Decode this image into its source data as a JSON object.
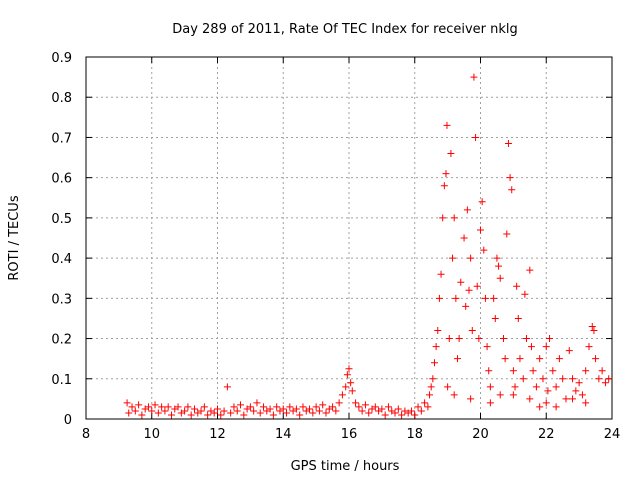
{
  "chart_data": {
    "type": "scatter",
    "title": "Day 289 of 2011, Rate Of TEC Index for receiver nklg",
    "xlabel": "GPS time / hours",
    "ylabel": "ROTI / TECUs",
    "xlim": [
      8,
      24
    ],
    "ylim": [
      0,
      0.9
    ],
    "xticks": [
      8,
      10,
      12,
      14,
      16,
      18,
      20,
      22,
      24
    ],
    "xtick_labels": [
      "8",
      "10",
      "12",
      "14",
      "16",
      "18",
      "20",
      "22",
      "24"
    ],
    "yticks": [
      0,
      0.1,
      0.2,
      0.3,
      0.4,
      0.5,
      0.6,
      0.7,
      0.8,
      0.9
    ],
    "ytick_labels": [
      "0",
      "0.1",
      "0.2",
      "0.3",
      "0.4",
      "0.5",
      "0.6",
      "0.7",
      "0.8",
      "0.9"
    ],
    "grid": true,
    "marker": "+",
    "color": "#ff0000",
    "series": [
      {
        "name": "ROTI",
        "points": [
          [
            9.25,
            0.04
          ],
          [
            9.3,
            0.015
          ],
          [
            9.4,
            0.03
          ],
          [
            9.5,
            0.02
          ],
          [
            9.6,
            0.035
          ],
          [
            9.7,
            0.01
          ],
          [
            9.8,
            0.025
          ],
          [
            9.9,
            0.03
          ],
          [
            10.0,
            0.02
          ],
          [
            10.1,
            0.035
          ],
          [
            10.2,
            0.015
          ],
          [
            10.3,
            0.03
          ],
          [
            10.4,
            0.02
          ],
          [
            10.5,
            0.03
          ],
          [
            10.6,
            0.01
          ],
          [
            10.7,
            0.025
          ],
          [
            10.8,
            0.03
          ],
          [
            10.9,
            0.015
          ],
          [
            11.0,
            0.02
          ],
          [
            11.1,
            0.03
          ],
          [
            11.2,
            0.01
          ],
          [
            11.3,
            0.025
          ],
          [
            11.4,
            0.015
          ],
          [
            11.5,
            0.02
          ],
          [
            11.6,
            0.03
          ],
          [
            11.7,
            0.01
          ],
          [
            11.8,
            0.02
          ],
          [
            11.9,
            0.015
          ],
          [
            12.0,
            0.025
          ],
          [
            12.1,
            0.01
          ],
          [
            12.2,
            0.02
          ],
          [
            12.3,
            0.08
          ],
          [
            12.4,
            0.015
          ],
          [
            12.5,
            0.03
          ],
          [
            12.6,
            0.02
          ],
          [
            12.7,
            0.035
          ],
          [
            12.8,
            0.01
          ],
          [
            12.9,
            0.025
          ],
          [
            13.0,
            0.03
          ],
          [
            13.1,
            0.02
          ],
          [
            13.2,
            0.04
          ],
          [
            13.3,
            0.015
          ],
          [
            13.4,
            0.03
          ],
          [
            13.5,
            0.02
          ],
          [
            13.6,
            0.025
          ],
          [
            13.7,
            0.01
          ],
          [
            13.8,
            0.03
          ],
          [
            13.9,
            0.02
          ],
          [
            14.0,
            0.025
          ],
          [
            14.1,
            0.015
          ],
          [
            14.2,
            0.03
          ],
          [
            14.3,
            0.02
          ],
          [
            14.4,
            0.025
          ],
          [
            14.5,
            0.01
          ],
          [
            14.6,
            0.03
          ],
          [
            14.7,
            0.02
          ],
          [
            14.8,
            0.025
          ],
          [
            14.9,
            0.015
          ],
          [
            15.0,
            0.03
          ],
          [
            15.1,
            0.02
          ],
          [
            15.2,
            0.035
          ],
          [
            15.3,
            0.015
          ],
          [
            15.4,
            0.025
          ],
          [
            15.5,
            0.03
          ],
          [
            15.6,
            0.02
          ],
          [
            15.7,
            0.04
          ],
          [
            15.8,
            0.06
          ],
          [
            15.9,
            0.08
          ],
          [
            15.95,
            0.11
          ],
          [
            16.0,
            0.125
          ],
          [
            16.05,
            0.09
          ],
          [
            16.1,
            0.07
          ],
          [
            16.2,
            0.04
          ],
          [
            16.3,
            0.03
          ],
          [
            16.4,
            0.02
          ],
          [
            16.5,
            0.035
          ],
          [
            16.6,
            0.015
          ],
          [
            16.7,
            0.025
          ],
          [
            16.8,
            0.03
          ],
          [
            16.9,
            0.02
          ],
          [
            17.0,
            0.025
          ],
          [
            17.1,
            0.01
          ],
          [
            17.2,
            0.03
          ],
          [
            17.3,
            0.02
          ],
          [
            17.4,
            0.015
          ],
          [
            17.5,
            0.025
          ],
          [
            17.6,
            0.01
          ],
          [
            17.7,
            0.02
          ],
          [
            17.8,
            0.015
          ],
          [
            17.9,
            0.02
          ],
          [
            18.0,
            0.01
          ],
          [
            18.1,
            0.03
          ],
          [
            18.2,
            0.02
          ],
          [
            18.3,
            0.04
          ],
          [
            18.4,
            0.03
          ],
          [
            18.45,
            0.06
          ],
          [
            18.5,
            0.08
          ],
          [
            18.55,
            0.1
          ],
          [
            18.6,
            0.14
          ],
          [
            18.65,
            0.18
          ],
          [
            18.7,
            0.22
          ],
          [
            18.75,
            0.3
          ],
          [
            18.8,
            0.36
          ],
          [
            18.85,
            0.5
          ],
          [
            18.9,
            0.58
          ],
          [
            18.95,
            0.61
          ],
          [
            18.98,
            0.73
          ],
          [
            19.05,
            0.2
          ],
          [
            19.1,
            0.66
          ],
          [
            19.15,
            0.4
          ],
          [
            19.2,
            0.5
          ],
          [
            19.25,
            0.3
          ],
          [
            19.3,
            0.15
          ],
          [
            19.35,
            0.2
          ],
          [
            19.4,
            0.34
          ],
          [
            19.5,
            0.45
          ],
          [
            19.55,
            0.28
          ],
          [
            19.6,
            0.52
          ],
          [
            19.65,
            0.32
          ],
          [
            19.7,
            0.4
          ],
          [
            19.75,
            0.22
          ],
          [
            19.8,
            0.85
          ],
          [
            19.85,
            0.7
          ],
          [
            19.9,
            0.33
          ],
          [
            19.95,
            0.2
          ],
          [
            20.0,
            0.47
          ],
          [
            20.05,
            0.54
          ],
          [
            20.1,
            0.42
          ],
          [
            20.15,
            0.3
          ],
          [
            20.2,
            0.18
          ],
          [
            20.25,
            0.12
          ],
          [
            20.3,
            0.08
          ],
          [
            20.4,
            0.3
          ],
          [
            20.45,
            0.25
          ],
          [
            20.5,
            0.4
          ],
          [
            20.55,
            0.38
          ],
          [
            20.6,
            0.35
          ],
          [
            20.7,
            0.2
          ],
          [
            20.75,
            0.15
          ],
          [
            20.8,
            0.46
          ],
          [
            20.85,
            0.685
          ],
          [
            20.9,
            0.6
          ],
          [
            20.95,
            0.57
          ],
          [
            21.0,
            0.12
          ],
          [
            21.05,
            0.08
          ],
          [
            21.1,
            0.33
          ],
          [
            21.15,
            0.25
          ],
          [
            21.2,
            0.15
          ],
          [
            21.3,
            0.1
          ],
          [
            21.35,
            0.31
          ],
          [
            21.4,
            0.2
          ],
          [
            21.5,
            0.37
          ],
          [
            21.55,
            0.18
          ],
          [
            21.6,
            0.12
          ],
          [
            21.7,
            0.08
          ],
          [
            21.8,
            0.15
          ],
          [
            21.9,
            0.1
          ],
          [
            22.0,
            0.18
          ],
          [
            22.05,
            0.07
          ],
          [
            22.1,
            0.2
          ],
          [
            22.2,
            0.12
          ],
          [
            22.3,
            0.08
          ],
          [
            22.4,
            0.15
          ],
          [
            22.5,
            0.1
          ],
          [
            22.6,
            0.05
          ],
          [
            22.7,
            0.17
          ],
          [
            22.8,
            0.1
          ],
          [
            22.9,
            0.07
          ],
          [
            23.0,
            0.09
          ],
          [
            23.1,
            0.06
          ],
          [
            23.2,
            0.12
          ],
          [
            23.3,
            0.18
          ],
          [
            23.4,
            0.23
          ],
          [
            23.45,
            0.22
          ],
          [
            23.5,
            0.15
          ],
          [
            23.6,
            0.1
          ],
          [
            23.7,
            0.12
          ],
          [
            23.8,
            0.09
          ],
          [
            23.9,
            0.1
          ],
          [
            19.0,
            0.08
          ],
          [
            19.2,
            0.06
          ],
          [
            19.7,
            0.05
          ],
          [
            20.3,
            0.04
          ],
          [
            21.0,
            0.06
          ],
          [
            21.5,
            0.05
          ],
          [
            22.0,
            0.04
          ],
          [
            22.3,
            0.03
          ],
          [
            22.8,
            0.05
          ],
          [
            23.2,
            0.04
          ],
          [
            20.6,
            0.06
          ],
          [
            21.8,
            0.03
          ]
        ]
      }
    ]
  }
}
